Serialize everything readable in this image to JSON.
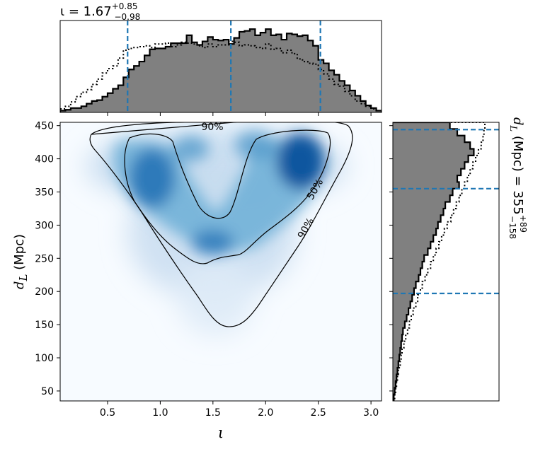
{
  "chart_data": {
    "type": "corner-plot",
    "top_title": {
      "prefix": "ι = 1.67",
      "sup": "+0.85",
      "sub": "−0.98"
    },
    "right_title": {
      "prefix": "d",
      "prefix_sub": "L",
      "middle": " (Mpc) = 355",
      "sup": "+89",
      "sub": "−158"
    },
    "xlabel": "ι",
    "ylabel": {
      "main": "d",
      "sub": "L",
      "rest": " (Mpc)"
    },
    "xlim": [
      0.05,
      3.1
    ],
    "ylim": [
      35,
      455
    ],
    "xticks": [
      0.5,
      1.0,
      1.5,
      2.0,
      2.5,
      3.0
    ],
    "xtick_labels": [
      "0.5",
      "1.0",
      "1.5",
      "2.0",
      "2.5",
      "3.0"
    ],
    "yticks": [
      50,
      100,
      150,
      200,
      250,
      300,
      350,
      400,
      450
    ],
    "ytick_labels": [
      "50",
      "100",
      "150",
      "200",
      "250",
      "300",
      "350",
      "400",
      "450"
    ],
    "contour_labels": [
      "90%",
      "50%",
      "90%"
    ],
    "colors": {
      "fill": "#808080",
      "hist_line": "#000000",
      "quantile": "#1f77b4",
      "density_low": "#f7fbff",
      "density_high": "#08306b"
    },
    "iota_quantiles": [
      0.69,
      1.67,
      2.52
    ],
    "dl_quantiles": [
      197,
      355,
      444
    ],
    "iota_hist": {
      "bins": [
        0.05,
        0.1,
        0.15,
        0.2,
        0.25,
        0.3,
        0.35,
        0.4,
        0.45,
        0.5,
        0.55,
        0.6,
        0.65,
        0.7,
        0.75,
        0.8,
        0.85,
        0.9,
        0.95,
        1.0,
        1.05,
        1.1,
        1.15,
        1.2,
        1.25,
        1.3,
        1.35,
        1.4,
        1.45,
        1.5,
        1.55,
        1.6,
        1.65,
        1.7,
        1.75,
        1.8,
        1.85,
        1.9,
        1.95,
        2.0,
        2.05,
        2.1,
        2.15,
        2.2,
        2.25,
        2.3,
        2.35,
        2.4,
        2.45,
        2.5,
        2.55,
        2.6,
        2.65,
        2.7,
        2.75,
        2.8,
        2.85,
        2.9,
        2.95,
        3.0,
        3.05,
        3.1
      ],
      "weighted": [
        0.02,
        0.03,
        0.05,
        0.05,
        0.07,
        0.1,
        0.13,
        0.14,
        0.18,
        0.22,
        0.27,
        0.31,
        0.4,
        0.49,
        0.53,
        0.58,
        0.65,
        0.72,
        0.73,
        0.73,
        0.75,
        0.79,
        0.79,
        0.79,
        0.88,
        0.8,
        0.77,
        0.81,
        0.86,
        0.83,
        0.82,
        0.83,
        0.78,
        0.85,
        0.92,
        0.93,
        0.95,
        0.88,
        0.91,
        0.95,
        0.88,
        0.89,
        0.83,
        0.9,
        0.89,
        0.87,
        0.88,
        0.82,
        0.76,
        0.6,
        0.56,
        0.48,
        0.43,
        0.36,
        0.31,
        0.25,
        0.19,
        0.13,
        0.08,
        0.05,
        0.02
      ],
      "prior": [
        0.04,
        0.07,
        0.12,
        0.18,
        0.23,
        0.26,
        0.32,
        0.38,
        0.45,
        0.5,
        0.53,
        0.62,
        0.71,
        0.73,
        0.74,
        0.75,
        0.76,
        0.74,
        0.78,
        0.78,
        0.79,
        0.75,
        0.77,
        0.8,
        0.79,
        0.78,
        0.76,
        0.74,
        0.78,
        0.75,
        0.77,
        0.77,
        0.81,
        0.8,
        0.76,
        0.77,
        0.76,
        0.74,
        0.73,
        0.78,
        0.72,
        0.73,
        0.68,
        0.71,
        0.67,
        0.61,
        0.58,
        0.56,
        0.55,
        0.49,
        0.44,
        0.38,
        0.32,
        0.3,
        0.24,
        0.19,
        0.13,
        0.1,
        0.07,
        0.04,
        0.02
      ]
    },
    "dl_hist": {
      "bins": [
        35,
        45,
        55,
        65,
        75,
        85,
        95,
        105,
        115,
        125,
        135,
        145,
        155,
        165,
        175,
        185,
        195,
        205,
        215,
        225,
        235,
        245,
        255,
        265,
        275,
        285,
        295,
        305,
        315,
        325,
        335,
        345,
        355,
        365,
        375,
        385,
        395,
        405,
        415,
        425,
        435,
        445,
        455
      ],
      "weighted": [
        0.01,
        0.02,
        0.03,
        0.04,
        0.05,
        0.06,
        0.07,
        0.08,
        0.09,
        0.1,
        0.11,
        0.13,
        0.15,
        0.17,
        0.19,
        0.21,
        0.23,
        0.25,
        0.28,
        0.3,
        0.32,
        0.34,
        0.38,
        0.41,
        0.44,
        0.47,
        0.49,
        0.52,
        0.55,
        0.57,
        0.62,
        0.65,
        0.72,
        0.7,
        0.74,
        0.78,
        0.82,
        0.88,
        0.84,
        0.78,
        0.7,
        0.62
      ],
      "prior": [
        0.02,
        0.03,
        0.04,
        0.05,
        0.06,
        0.08,
        0.09,
        0.1,
        0.12,
        0.14,
        0.16,
        0.18,
        0.2,
        0.22,
        0.25,
        0.27,
        0.3,
        0.32,
        0.35,
        0.38,
        0.41,
        0.44,
        0.47,
        0.5,
        0.53,
        0.56,
        0.59,
        0.63,
        0.66,
        0.69,
        0.72,
        0.75,
        0.78,
        0.81,
        0.84,
        0.87,
        0.9,
        0.93,
        0.96,
        0.98,
        0.99,
        1.0
      ]
    }
  }
}
